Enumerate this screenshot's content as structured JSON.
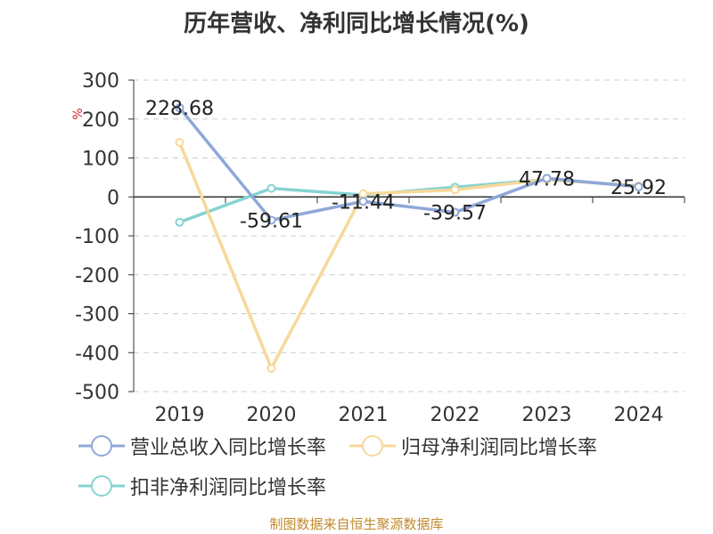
{
  "title": "历年营收、净利同比增长情况(%)",
  "unit_label": "%",
  "source": "制图数据来自恒生聚源数据库",
  "legend": {
    "revenue": "营业总收入同比增长率",
    "net_profit": "归母净利润同比增长率",
    "non_gaap": "扣非净利润同比增长率"
  },
  "colors": {
    "revenue": "#8fa8d8",
    "net_profit": "#f8d89a",
    "non_gaap": "#86d3d0",
    "grid": "#cccccc",
    "axis": "#333333",
    "text": "#333333"
  },
  "chart_data": {
    "type": "line",
    "title": "历年营收、净利同比增长情况(%)",
    "x": [
      "2019",
      "2020",
      "2021",
      "2022",
      "2023",
      "2024"
    ],
    "ylim": [
      -500,
      300
    ],
    "yticks": [
      300,
      200,
      100,
      0,
      -100,
      -200,
      -300,
      -400,
      -500
    ],
    "grid": true,
    "legend_position": "bottom",
    "series": [
      {
        "key": "revenue",
        "name": "营业总收入同比增长率",
        "values": [
          228.68,
          -59.61,
          -11.44,
          -39.57,
          47.78,
          25.92
        ],
        "data_labels": [
          "228.68",
          "-59.61",
          "-11.44",
          "-39.57",
          "47.78",
          "25.92"
        ]
      },
      {
        "key": "net_profit",
        "name": "归母净利润同比增长率",
        "values": [
          140,
          -440,
          8,
          18,
          45,
          28
        ]
      },
      {
        "key": "non_gaap",
        "name": "扣非净利润同比增长率",
        "values": [
          -65,
          22,
          5,
          25,
          45,
          28
        ]
      }
    ]
  }
}
